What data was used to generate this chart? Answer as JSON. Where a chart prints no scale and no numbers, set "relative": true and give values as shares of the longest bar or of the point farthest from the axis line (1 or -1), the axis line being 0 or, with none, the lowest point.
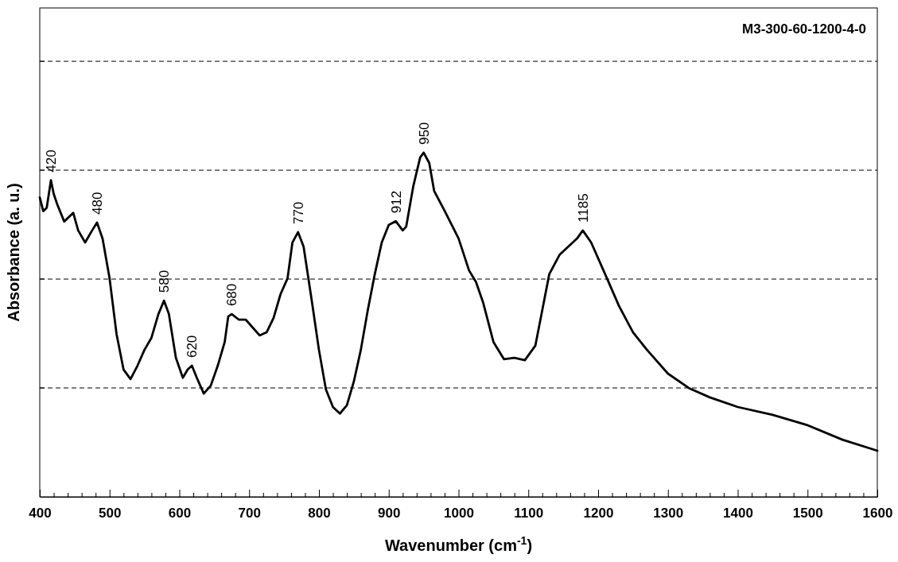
{
  "chart_data": {
    "type": "line",
    "relative": true,
    "title": "M3-300-60-1200-4-0",
    "xlabel": "Wavenumber (cm$^{-1}$)",
    "ylabel": "Absorbance (a. u.)",
    "xlim": [
      400,
      1600
    ],
    "xticks": [
      400,
      {
        "value": 420,
        "label": null
      },
      {
        "value": 440,
        "label": null
      },
      {
        "value": 460,
        "label": null
      },
      {
        "value": 480,
        "label": null
      },
      500,
      {
        "value": 520,
        "label": null
      },
      {
        "value": 540,
        "label": null
      },
      {
        "value": 560,
        "label": null
      },
      {
        "value": 580,
        "label": null
      },
      600,
      {
        "value": 620,
        "label": null
      },
      {
        "value": 640,
        "label": null
      },
      {
        "value": 660,
        "label": null
      },
      {
        "value": 680,
        "label": null
      },
      700,
      {
        "value": 720,
        "label": null
      },
      {
        "value": 740,
        "label": null
      },
      {
        "value": 760,
        "label": null
      },
      {
        "value": 780,
        "label": null
      },
      800,
      {
        "value": 820,
        "label": null
      },
      {
        "value": 840,
        "label": null
      },
      {
        "value": 860,
        "label": null
      },
      {
        "value": 880,
        "label": null
      },
      900,
      {
        "value": 920,
        "label": null
      },
      {
        "value": 940,
        "label": null
      },
      {
        "value": 960,
        "label": null
      },
      {
        "value": 980,
        "label": null
      },
      1000,
      {
        "value": 1020,
        "label": null
      },
      {
        "value": 1040,
        "label": null
      },
      {
        "value": 1060,
        "label": null
      },
      {
        "value": 1080,
        "label": null
      },
      1100,
      {
        "value": 1120,
        "label": null
      },
      {
        "value": 1140,
        "label": null
      },
      {
        "value": 1160,
        "label": null
      },
      {
        "value": 1180,
        "label": null
      },
      1200,
      {
        "value": 1220,
        "label": null
      },
      {
        "value": 1240,
        "label": null
      },
      {
        "value": 1260,
        "label": null
      },
      {
        "value": 1280,
        "label": null
      },
      1300,
      {
        "value": 1320,
        "label": null
      },
      {
        "value": 1340,
        "label": null
      },
      {
        "value": 1360,
        "label": null
      },
      {
        "value": 1380,
        "label": null
      },
      1400,
      {
        "value": 1420,
        "label": null
      },
      {
        "value": 1440,
        "label": null
      },
      {
        "value": 1460,
        "label": null
      },
      {
        "value": 1480,
        "label": null
      },
      1500,
      {
        "value": 1520,
        "label": null
      },
      {
        "value": 1540,
        "label": null
      },
      {
        "value": 1560,
        "label": null
      },
      {
        "value": 1580,
        "label": null
      },
      1600
    ],
    "grid": "y",
    "line_style": "solid",
    "color": "#000000",
    "x": [
      400,
      405,
      410,
      416,
      420,
      425,
      435,
      448,
      455,
      465,
      475,
      482,
      490,
      500,
      510,
      520,
      530,
      540,
      550,
      560,
      570,
      578,
      585,
      595,
      605,
      612,
      618,
      625,
      635,
      645,
      655,
      665,
      670,
      675,
      685,
      695,
      705,
      715,
      725,
      735,
      745,
      755,
      762,
      770,
      778,
      790,
      800,
      810,
      820,
      830,
      840,
      850,
      860,
      870,
      880,
      890,
      900,
      910,
      920,
      925,
      935,
      945,
      950,
      958,
      965,
      980,
      1000,
      1015,
      1025,
      1035,
      1050,
      1065,
      1080,
      1095,
      1110,
      1120,
      1130,
      1145,
      1160,
      1170,
      1178,
      1190,
      1210,
      1230,
      1250,
      1270,
      1300,
      1330,
      1360,
      1400,
      1450,
      1500,
      1550,
      1600
    ],
    "values": [
      0.87,
      0.83,
      0.84,
      0.92,
      0.88,
      0.85,
      0.8,
      0.825,
      0.774,
      0.739,
      0.774,
      0.797,
      0.75,
      0.635,
      0.473,
      0.37,
      0.342,
      0.381,
      0.427,
      0.462,
      0.531,
      0.57,
      0.531,
      0.404,
      0.346,
      0.37,
      0.381,
      0.346,
      0.3,
      0.323,
      0.381,
      0.45,
      0.524,
      0.531,
      0.515,
      0.515,
      0.492,
      0.469,
      0.478,
      0.52,
      0.589,
      0.635,
      0.739,
      0.769,
      0.727,
      0.566,
      0.427,
      0.312,
      0.261,
      0.242,
      0.266,
      0.335,
      0.427,
      0.543,
      0.647,
      0.739,
      0.79,
      0.801,
      0.774,
      0.785,
      0.901,
      0.986,
      1.0,
      0.97,
      0.889,
      0.831,
      0.751,
      0.658,
      0.624,
      0.566,
      0.45,
      0.4,
      0.404,
      0.397,
      0.439,
      0.543,
      0.647,
      0.704,
      0.732,
      0.751,
      0.774,
      0.739,
      0.647,
      0.554,
      0.478,
      0.427,
      0.358,
      0.316,
      0.289,
      0.261,
      0.238,
      0.208,
      0.166,
      0.134
    ],
    "annotations": [
      {
        "text": "420",
        "x": 416,
        "y": 0.92
      },
      {
        "text": "480",
        "x": 482,
        "y": 0.797
      },
      {
        "text": "580",
        "x": 578,
        "y": 0.57
      },
      {
        "text": "620",
        "x": 618,
        "y": 0.381
      },
      {
        "text": "680",
        "x": 675,
        "y": 0.531
      },
      {
        "text": "770",
        "x": 770,
        "y": 0.769
      },
      {
        "text": "912",
        "x": 910,
        "y": 0.801
      },
      {
        "text": "950",
        "x": 950,
        "y": 1.0
      },
      {
        "text": "1185",
        "x": 1178,
        "y": 0.774
      }
    ]
  }
}
